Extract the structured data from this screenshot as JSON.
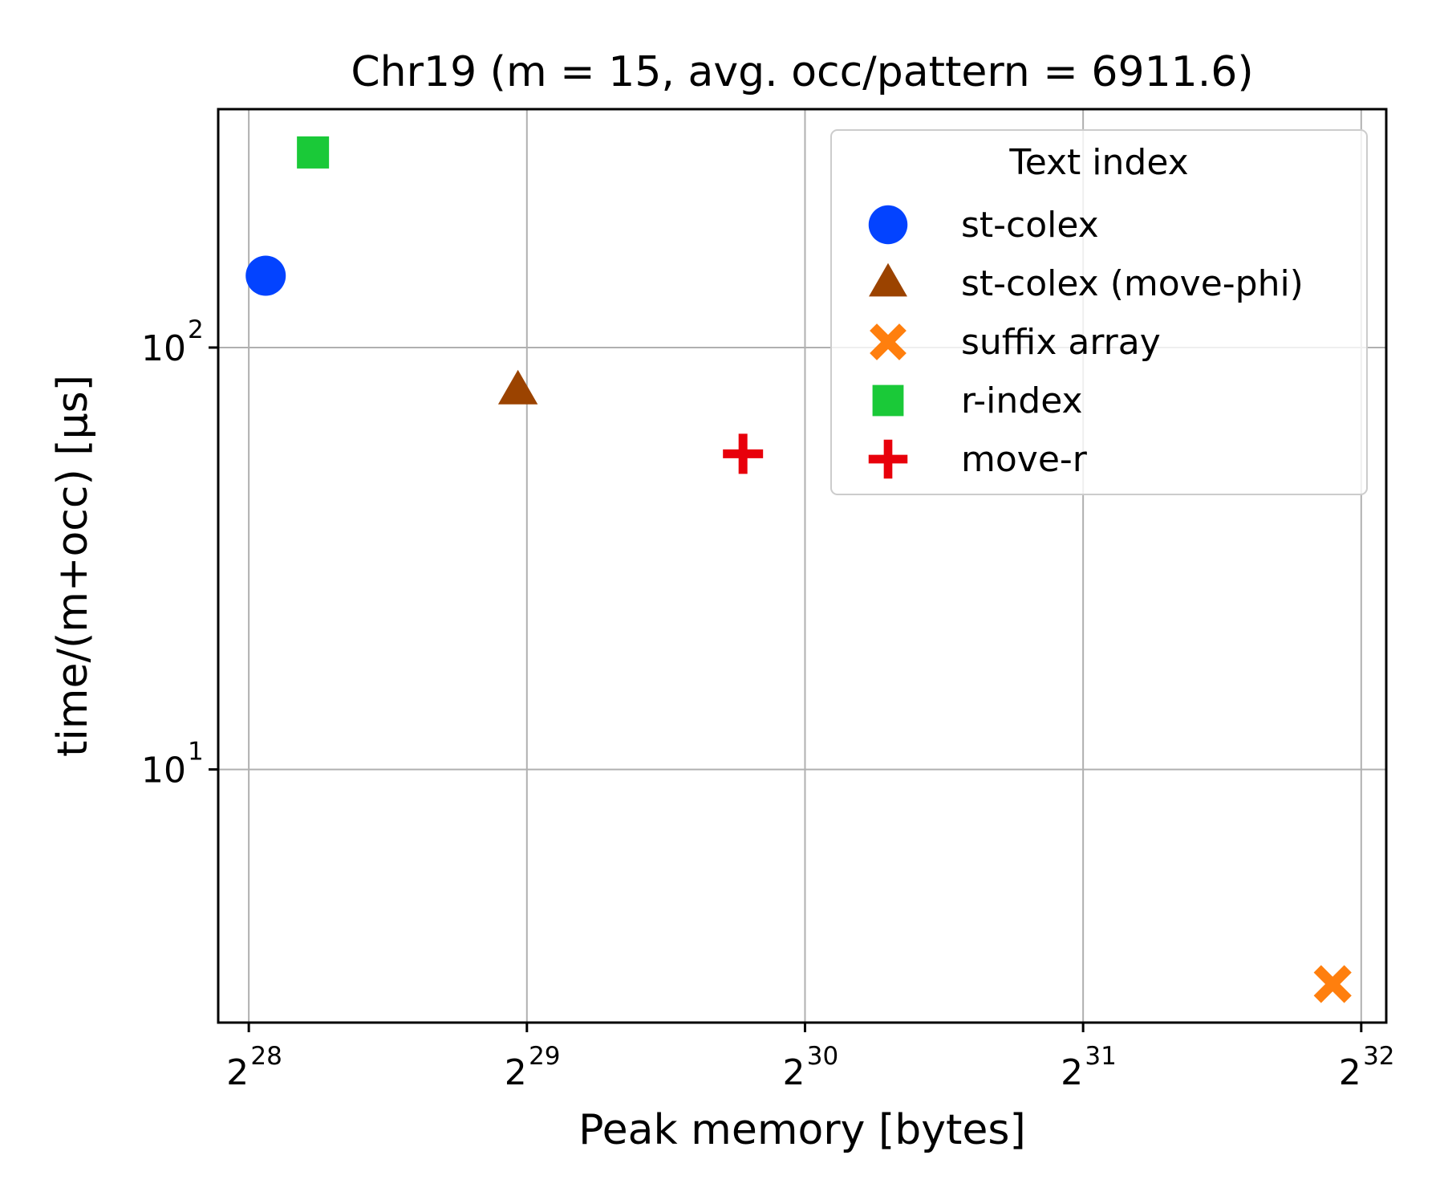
{
  "chart_data": {
    "type": "scatter",
    "title": "Chr19 (m = 15,  avg. occ/pattern = 6911.6)",
    "xlabel": "Peak memory [bytes]",
    "ylabel": "time/(m+occ) [µs]",
    "x_scale": "log2",
    "y_scale": "log10",
    "xlim_log2": [
      27.89,
      32.09
    ],
    "ylim_log10": [
      0.4,
      2.565
    ],
    "x_ticks": [
      {
        "base": "2",
        "exp": "28",
        "log2": 28
      },
      {
        "base": "2",
        "exp": "29",
        "log2": 29
      },
      {
        "base": "2",
        "exp": "30",
        "log2": 30
      },
      {
        "base": "2",
        "exp": "31",
        "log2": 31
      },
      {
        "base": "2",
        "exp": "32",
        "log2": 32
      }
    ],
    "y_ticks": [
      {
        "base": "10",
        "exp": "1",
        "log10": 1
      },
      {
        "base": "10",
        "exp": "2",
        "log10": 2
      }
    ],
    "grid": true,
    "legend": {
      "title": "Text index",
      "position": "upper right"
    },
    "series": [
      {
        "name": "st-colex",
        "marker": "circle",
        "color": "#0343ff",
        "x": 280000000.0,
        "y": 148
      },
      {
        "name": "st-colex (move-phi)",
        "marker": "triangle",
        "color": "#9b4300",
        "x": 525000000.0,
        "y": 79
      },
      {
        "name": "suffix array",
        "marker": "x",
        "color": "#ff7f0e",
        "x": 4000000000.0,
        "y": 3.1
      },
      {
        "name": "r-index",
        "marker": "square",
        "color": "#1ac938",
        "x": 315000000.0,
        "y": 290
      },
      {
        "name": "move-r",
        "marker": "plus",
        "color": "#e8000b",
        "x": 920000000.0,
        "y": 56
      }
    ]
  }
}
